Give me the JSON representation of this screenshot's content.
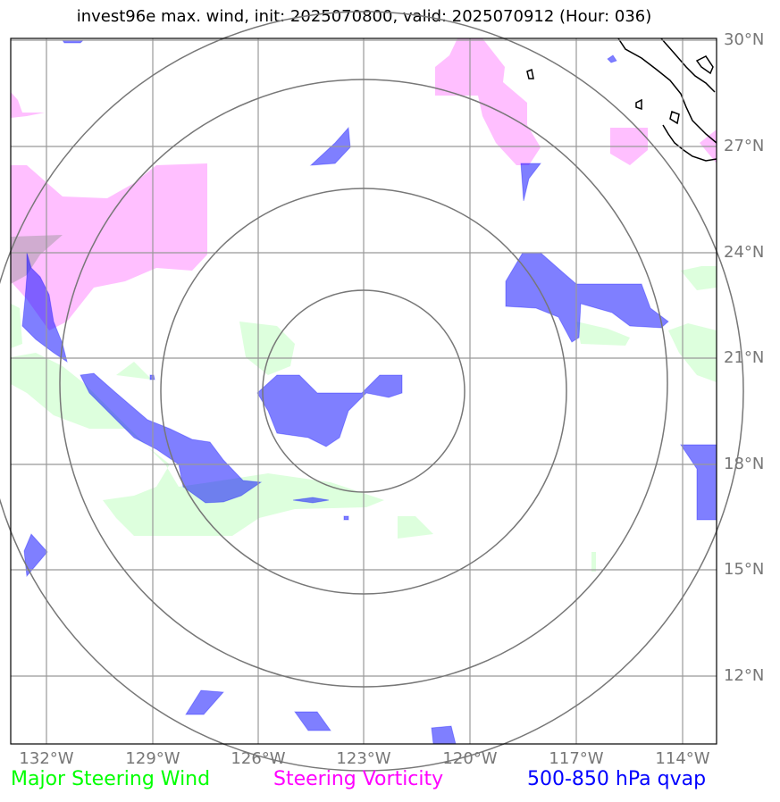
{
  "title": "invest96e max. wind, init: 2025070800, valid: 2025070912 (Hour: 036)",
  "map": {
    "lat_labels": [
      "30°N",
      "27°N",
      "24°N",
      "21°N",
      "18°N",
      "15°N",
      "12°N"
    ],
    "lon_labels": [
      "132°W",
      "129°W",
      "126°W",
      "123°W",
      "120°W",
      "117°W",
      "114°W"
    ],
    "center": {
      "lat": 20.3,
      "lon": -123.0
    },
    "extent": {
      "lon_min": -133.0,
      "lon_max": -113.0,
      "lat_min": 10.0,
      "lat_max": 30.0
    },
    "range_rings": 4
  },
  "legend": {
    "wind": {
      "label": "Major Steering Wind",
      "color": "#00ff00"
    },
    "vorticity": {
      "label": "Steering Vorticity",
      "color": "#ff00ff"
    },
    "qvap": {
      "label": "500-850 hPa qvap",
      "color": "#0000ff"
    }
  }
}
